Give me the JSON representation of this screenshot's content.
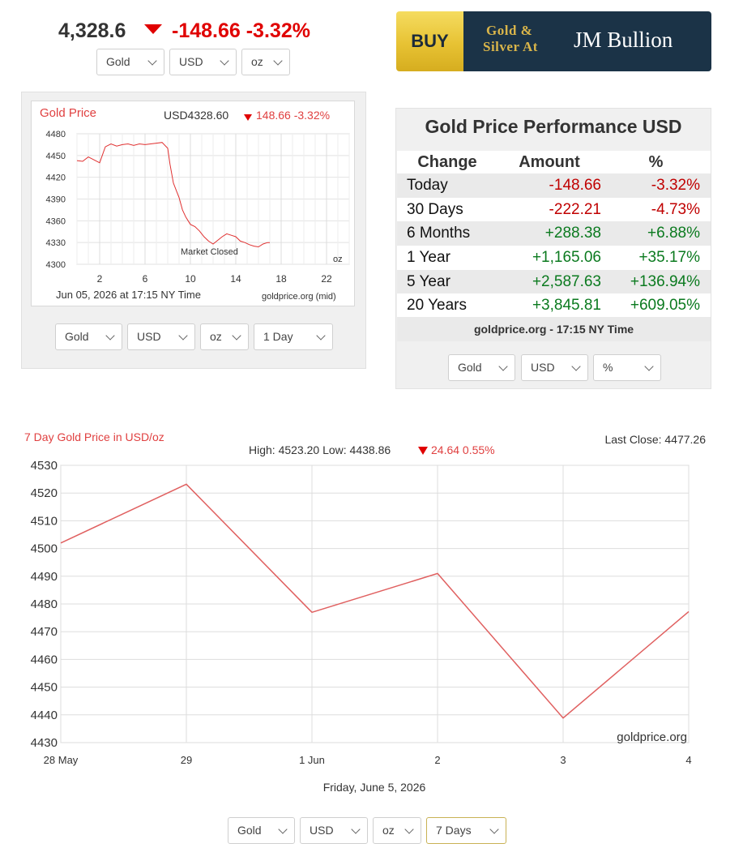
{
  "top": {
    "price": "4,328.6",
    "change": "-148.66  -3.32%",
    "selects": [
      "Gold",
      "USD",
      "oz"
    ]
  },
  "banner": {
    "buy": "BUY",
    "tagline_1": "Gold &",
    "tagline_2": "Silver At",
    "brand": "JM Bullion",
    "colors": {
      "buy_bg": "#e7c233",
      "brand_bg": "#1b3347",
      "tagline": "#d9b54a"
    }
  },
  "small_chart": {
    "title": "Gold Price",
    "header_price": "USD4328.60",
    "header_change": "148.66 -3.32%",
    "date_text": "Jun 05, 2026 at 17:15 NY Time",
    "source": "goldprice.org (mid)",
    "unit": "oz",
    "annotation": "Market Closed",
    "selects": [
      "Gold",
      "USD",
      "oz",
      "1 Day"
    ]
  },
  "performance": {
    "title": "Gold Price Performance USD",
    "headers": [
      "Change",
      "Amount",
      "%"
    ],
    "rows": [
      {
        "period": "Today",
        "amount": "-148.66",
        "pct": "-3.32%",
        "sign": "neg"
      },
      {
        "period": "30 Days",
        "amount": "-222.21",
        "pct": "-4.73%",
        "sign": "neg"
      },
      {
        "period": "6 Months",
        "amount": "+288.38",
        "pct": "+6.88%",
        "sign": "pos"
      },
      {
        "period": "1 Year",
        "amount": "+1,165.06",
        "pct": "+35.17%",
        "sign": "pos"
      },
      {
        "period": "5 Year",
        "amount": "+2,587.63",
        "pct": "+136.94%",
        "sign": "pos"
      },
      {
        "period": "20 Years",
        "amount": "+3,845.81",
        "pct": "+609.05%",
        "sign": "pos"
      }
    ],
    "footer": "goldprice.org - 17:15 NY Time",
    "selects": [
      "Gold",
      "USD",
      "%"
    ]
  },
  "big_chart_meta": {
    "title": "7 Day Gold Price in USD/oz",
    "last_close": "Last Close: 4477.26",
    "stats": "High: 4523.20 Low: 4438.86",
    "stats_change": "24.64 0.55%",
    "watermark": "goldprice.org",
    "date_caption": "Friday, June 5, 2026",
    "selects": [
      "Gold",
      "USD",
      "oz",
      "7 Days"
    ]
  },
  "chart_data": [
    {
      "type": "line",
      "title": "Gold Price",
      "x_ticks": [
        "2",
        "6",
        "10",
        "14",
        "18",
        "22"
      ],
      "x_tick_values": [
        2,
        6,
        10,
        14,
        18,
        22
      ],
      "xlim": [
        0,
        24
      ],
      "ylim": [
        4300,
        4480
      ],
      "y_ticks": [
        4300,
        4330,
        4360,
        4390,
        4420,
        4450,
        4480
      ],
      "x": [
        0,
        0.5,
        1,
        1.5,
        2,
        2.5,
        3,
        3.5,
        4,
        4.5,
        5,
        5.5,
        6,
        6.5,
        7,
        7.5,
        8,
        8.2,
        8.5,
        8.8,
        9,
        9.3,
        9.6,
        10,
        10.4,
        10.8,
        11.2,
        11.6,
        12,
        12.4,
        12.8,
        13.2,
        13.6,
        14,
        14.4,
        14.8,
        15.2,
        15.6,
        16,
        16.4,
        16.8,
        17
      ],
      "y": [
        4443,
        4442,
        4448,
        4444,
        4440,
        4462,
        4466,
        4463,
        4465,
        4466,
        4464,
        4466,
        4465,
        4466,
        4467,
        4468,
        4460,
        4438,
        4412,
        4400,
        4392,
        4375,
        4365,
        4355,
        4352,
        4346,
        4338,
        4332,
        4328,
        4333,
        4338,
        4342,
        4340,
        4338,
        4332,
        4330,
        4327,
        4325,
        4324,
        4328,
        4330,
        4330
      ]
    },
    {
      "type": "line",
      "title": "7 Day Gold Price in USD/oz",
      "categories": [
        "28 May",
        "29",
        "1 Jun",
        "2",
        "3",
        "4"
      ],
      "values": [
        4502,
        4523.2,
        4477,
        4491,
        4438.86,
        4477.26
      ],
      "ylim": [
        4430,
        4530
      ],
      "y_ticks": [
        4430,
        4440,
        4450,
        4460,
        4470,
        4480,
        4490,
        4500,
        4510,
        4520,
        4530
      ],
      "grid": true,
      "color": "#e06060"
    }
  ]
}
